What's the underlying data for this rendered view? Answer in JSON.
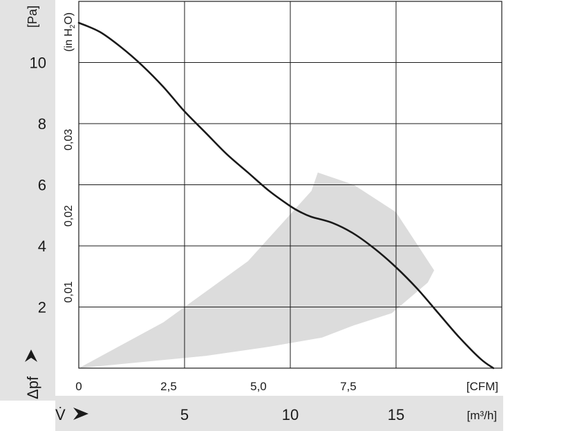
{
  "chart_data": {
    "type": "line",
    "title": "",
    "y_unit_label": "[Pa]",
    "y_secondary_unit_label": "(in H",
    "y_secondary_unit_sub": "2",
    "y_secondary_unit_end": "O)",
    "y_symbol": "Δpf",
    "x_symbol": "V̇",
    "x_unit_top": "[CFM]",
    "x_unit_bottom": "[m³/h]",
    "y_ticks": [
      "2",
      "4",
      "6",
      "8",
      "10"
    ],
    "y_tick_values": [
      2,
      4,
      6,
      8,
      10
    ],
    "y_secondary_ticks": [
      "0,01",
      "0,02",
      "0,03"
    ],
    "y_secondary_tick_values": [
      0.01,
      0.02,
      0.03
    ],
    "x_cfm_ticks": [
      "0",
      "2,5",
      "5,0",
      "7,5"
    ],
    "x_cfm_tick_values": [
      0,
      2.5,
      5.0,
      7.5
    ],
    "x_m3h_ticks": [
      "5",
      "10",
      "15"
    ],
    "x_m3h_tick_values": [
      5,
      10,
      15
    ],
    "xlim_m3h": [
      0,
      20
    ],
    "ylim_pa": [
      0,
      12
    ],
    "grid": true,
    "series": [
      {
        "x_m3h": [
          0,
          1,
          2,
          3,
          4,
          5,
          6,
          7,
          8,
          9,
          10,
          10.5,
          11,
          12,
          13,
          14,
          15,
          16,
          17,
          18,
          19,
          19.6
        ],
        "y_pa": [
          11.3,
          11.0,
          10.5,
          9.9,
          9.2,
          8.4,
          7.7,
          7.0,
          6.4,
          5.8,
          5.3,
          5.1,
          4.95,
          4.75,
          4.4,
          3.9,
          3.3,
          2.6,
          1.8,
          1.0,
          0.3,
          0.0
        ],
        "color": "#1a1a1a"
      }
    ],
    "operating_range_band": {
      "color": "#dcdcdc",
      "x_m3h": [
        0,
        4,
        8,
        11,
        11.3,
        13,
        15,
        16.8,
        16.5,
        14.8,
        13,
        11.5,
        9,
        6,
        3,
        0
      ],
      "y_pa": [
        0,
        1.5,
        3.5,
        5.8,
        6.4,
        6.0,
        5.1,
        3.2,
        2.8,
        1.8,
        1.4,
        1.0,
        0.7,
        0.4,
        0.2,
        0
      ]
    },
    "side_panel_color": "#e3e3e3",
    "bottom_panel_color": "#e3e3e3"
  }
}
